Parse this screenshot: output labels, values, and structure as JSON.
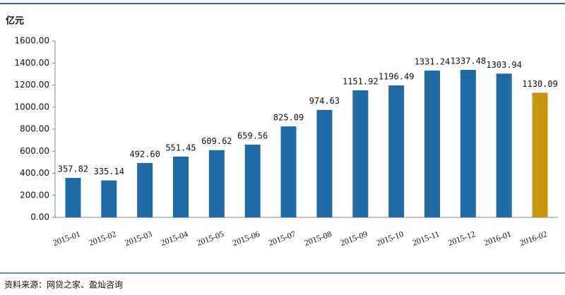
{
  "chart_data": {
    "type": "bar",
    "unit_label": "亿元",
    "source": "资料来源：网贷之家、盈灿咨询",
    "categories": [
      "2015-01",
      "2015-02",
      "2015-03",
      "2015-04",
      "2015-05",
      "2015-06",
      "2015-07",
      "2015-08",
      "2015-09",
      "2015-10",
      "2015-11",
      "2015-12",
      "2016-01",
      "2016-02"
    ],
    "values": [
      357.82,
      335.14,
      492.6,
      551.45,
      609.62,
      659.56,
      825.09,
      974.63,
      1151.92,
      1196.49,
      1331.24,
      1337.48,
      1303.94,
      1130.09
    ],
    "value_labels": [
      "357.82",
      "335.14",
      "492.60",
      "551.45",
      "609.62",
      "659.56",
      "825.09",
      "974.63",
      "1151.92",
      "1196.49",
      "1331.24",
      "1337.48",
      "1303.94",
      "1130.09"
    ],
    "colors": [
      "#1f6aa5",
      "#1f6aa5",
      "#1f6aa5",
      "#1f6aa5",
      "#1f6aa5",
      "#1f6aa5",
      "#1f6aa5",
      "#1f6aa5",
      "#1f6aa5",
      "#1f6aa5",
      "#1f6aa5",
      "#1f6aa5",
      "#1f6aa5",
      "#c8960c"
    ],
    "ylim": [
      0,
      1600
    ],
    "yticks": [
      {
        "value": 0,
        "label": "0.00"
      },
      {
        "value": 200,
        "label": "200.00"
      },
      {
        "value": 400,
        "label": "400.00"
      },
      {
        "value": 600,
        "label": "600.00"
      },
      {
        "value": 800,
        "label": "800.00"
      },
      {
        "value": 1000,
        "label": "1000.00"
      },
      {
        "value": 1200,
        "label": "1200.00"
      },
      {
        "value": 1400,
        "label": "1400.00"
      },
      {
        "value": 1600,
        "label": "1600.00"
      }
    ],
    "grid": false
  }
}
